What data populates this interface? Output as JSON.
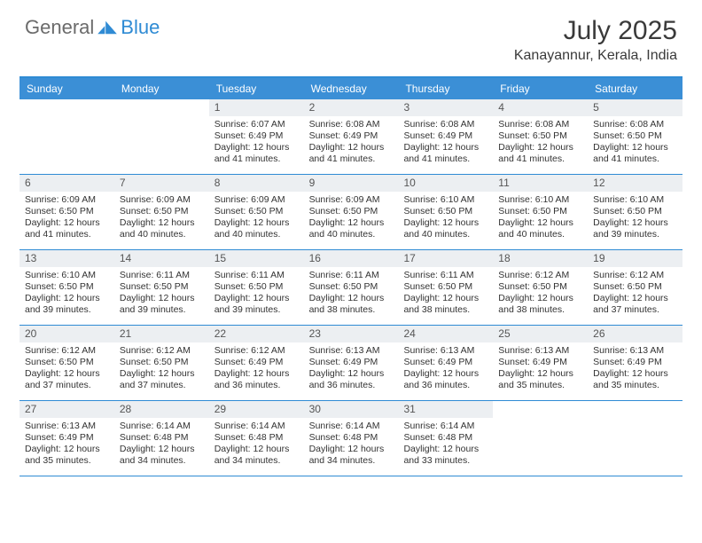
{
  "logo": {
    "part1": "General",
    "part2": "Blue"
  },
  "title": "July 2025",
  "location": "Kanayannur, Kerala, India",
  "colors": {
    "accent": "#3b8fd6",
    "accent_border": "#2f8bd4",
    "daynum_bg": "#eceff2",
    "text": "#333333",
    "title_color": "#3a3a3a"
  },
  "day_headers": [
    "Sunday",
    "Monday",
    "Tuesday",
    "Wednesday",
    "Thursday",
    "Friday",
    "Saturday"
  ],
  "weeks": [
    [
      null,
      null,
      {
        "n": "1",
        "sr": "6:07 AM",
        "ss": "6:49 PM",
        "dl": "12 hours and 41 minutes."
      },
      {
        "n": "2",
        "sr": "6:08 AM",
        "ss": "6:49 PM",
        "dl": "12 hours and 41 minutes."
      },
      {
        "n": "3",
        "sr": "6:08 AM",
        "ss": "6:49 PM",
        "dl": "12 hours and 41 minutes."
      },
      {
        "n": "4",
        "sr": "6:08 AM",
        "ss": "6:50 PM",
        "dl": "12 hours and 41 minutes."
      },
      {
        "n": "5",
        "sr": "6:08 AM",
        "ss": "6:50 PM",
        "dl": "12 hours and 41 minutes."
      }
    ],
    [
      {
        "n": "6",
        "sr": "6:09 AM",
        "ss": "6:50 PM",
        "dl": "12 hours and 41 minutes."
      },
      {
        "n": "7",
        "sr": "6:09 AM",
        "ss": "6:50 PM",
        "dl": "12 hours and 40 minutes."
      },
      {
        "n": "8",
        "sr": "6:09 AM",
        "ss": "6:50 PM",
        "dl": "12 hours and 40 minutes."
      },
      {
        "n": "9",
        "sr": "6:09 AM",
        "ss": "6:50 PM",
        "dl": "12 hours and 40 minutes."
      },
      {
        "n": "10",
        "sr": "6:10 AM",
        "ss": "6:50 PM",
        "dl": "12 hours and 40 minutes."
      },
      {
        "n": "11",
        "sr": "6:10 AM",
        "ss": "6:50 PM",
        "dl": "12 hours and 40 minutes."
      },
      {
        "n": "12",
        "sr": "6:10 AM",
        "ss": "6:50 PM",
        "dl": "12 hours and 39 minutes."
      }
    ],
    [
      {
        "n": "13",
        "sr": "6:10 AM",
        "ss": "6:50 PM",
        "dl": "12 hours and 39 minutes."
      },
      {
        "n": "14",
        "sr": "6:11 AM",
        "ss": "6:50 PM",
        "dl": "12 hours and 39 minutes."
      },
      {
        "n": "15",
        "sr": "6:11 AM",
        "ss": "6:50 PM",
        "dl": "12 hours and 39 minutes."
      },
      {
        "n": "16",
        "sr": "6:11 AM",
        "ss": "6:50 PM",
        "dl": "12 hours and 38 minutes."
      },
      {
        "n": "17",
        "sr": "6:11 AM",
        "ss": "6:50 PM",
        "dl": "12 hours and 38 minutes."
      },
      {
        "n": "18",
        "sr": "6:12 AM",
        "ss": "6:50 PM",
        "dl": "12 hours and 38 minutes."
      },
      {
        "n": "19",
        "sr": "6:12 AM",
        "ss": "6:50 PM",
        "dl": "12 hours and 37 minutes."
      }
    ],
    [
      {
        "n": "20",
        "sr": "6:12 AM",
        "ss": "6:50 PM",
        "dl": "12 hours and 37 minutes."
      },
      {
        "n": "21",
        "sr": "6:12 AM",
        "ss": "6:50 PM",
        "dl": "12 hours and 37 minutes."
      },
      {
        "n": "22",
        "sr": "6:12 AM",
        "ss": "6:49 PM",
        "dl": "12 hours and 36 minutes."
      },
      {
        "n": "23",
        "sr": "6:13 AM",
        "ss": "6:49 PM",
        "dl": "12 hours and 36 minutes."
      },
      {
        "n": "24",
        "sr": "6:13 AM",
        "ss": "6:49 PM",
        "dl": "12 hours and 36 minutes."
      },
      {
        "n": "25",
        "sr": "6:13 AM",
        "ss": "6:49 PM",
        "dl": "12 hours and 35 minutes."
      },
      {
        "n": "26",
        "sr": "6:13 AM",
        "ss": "6:49 PM",
        "dl": "12 hours and 35 minutes."
      }
    ],
    [
      {
        "n": "27",
        "sr": "6:13 AM",
        "ss": "6:49 PM",
        "dl": "12 hours and 35 minutes."
      },
      {
        "n": "28",
        "sr": "6:14 AM",
        "ss": "6:48 PM",
        "dl": "12 hours and 34 minutes."
      },
      {
        "n": "29",
        "sr": "6:14 AM",
        "ss": "6:48 PM",
        "dl": "12 hours and 34 minutes."
      },
      {
        "n": "30",
        "sr": "6:14 AM",
        "ss": "6:48 PM",
        "dl": "12 hours and 34 minutes."
      },
      {
        "n": "31",
        "sr": "6:14 AM",
        "ss": "6:48 PM",
        "dl": "12 hours and 33 minutes."
      },
      null,
      null
    ]
  ],
  "labels": {
    "sunrise": "Sunrise:",
    "sunset": "Sunset:",
    "daylight": "Daylight:"
  }
}
